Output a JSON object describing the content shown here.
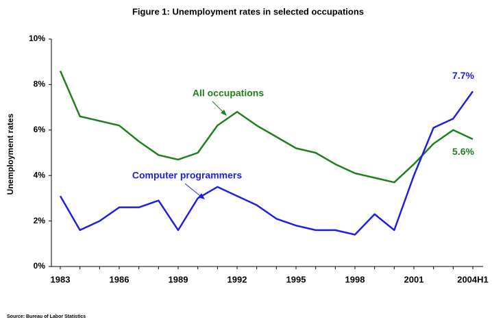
{
  "chart_data": {
    "type": "line",
    "title": "Figure 1: Unemployment rates in selected occupations",
    "y_label": "Unemployment rates",
    "source": "Source:  Bureau of Labor Statistics",
    "categories": [
      "1983",
      null,
      null,
      "1986",
      null,
      null,
      "1989",
      null,
      null,
      "1992",
      null,
      null,
      "1995",
      null,
      null,
      "1998",
      null,
      null,
      "2001",
      null,
      null,
      "2004H1"
    ],
    "series": [
      {
        "name": "All occupations",
        "color": "#1f7f1f",
        "values": [
          8.6,
          6.6,
          6.4,
          6.2,
          5.5,
          4.9,
          4.7,
          5.0,
          6.2,
          6.8,
          6.2,
          5.7,
          5.2,
          5.0,
          4.5,
          4.1,
          3.9,
          3.7,
          4.5,
          5.4,
          6.0,
          5.6
        ],
        "value_labels": [
          null,
          null,
          null,
          null,
          null,
          null,
          null,
          null,
          null,
          null,
          null,
          null,
          null,
          null,
          null,
          null,
          null,
          null,
          null,
          null,
          null,
          "5.6%"
        ]
      },
      {
        "name": "Computer programmers",
        "color": "#1e1ee6",
        "values": [
          3.1,
          1.6,
          2.0,
          2.6,
          2.6,
          2.9,
          1.6,
          3.0,
          3.5,
          3.1,
          2.7,
          2.1,
          1.8,
          1.6,
          1.6,
          1.4,
          2.3,
          1.6,
          4.0,
          6.1,
          6.5,
          7.7
        ],
        "value_labels": [
          null,
          null,
          null,
          null,
          null,
          null,
          null,
          null,
          null,
          null,
          null,
          null,
          null,
          null,
          null,
          null,
          null,
          null,
          null,
          null,
          null,
          "7.7%"
        ]
      }
    ],
    "ylim": [
      0,
      10
    ],
    "yticks": [
      {
        "value": 0,
        "label": "0%"
      },
      {
        "value": 2,
        "label": "2%"
      },
      {
        "value": 4,
        "label": "4%"
      },
      {
        "value": 6,
        "label": "6%"
      },
      {
        "value": 8,
        "label": "8%"
      },
      {
        "value": 10,
        "label": "10%"
      }
    ],
    "grid": false
  }
}
